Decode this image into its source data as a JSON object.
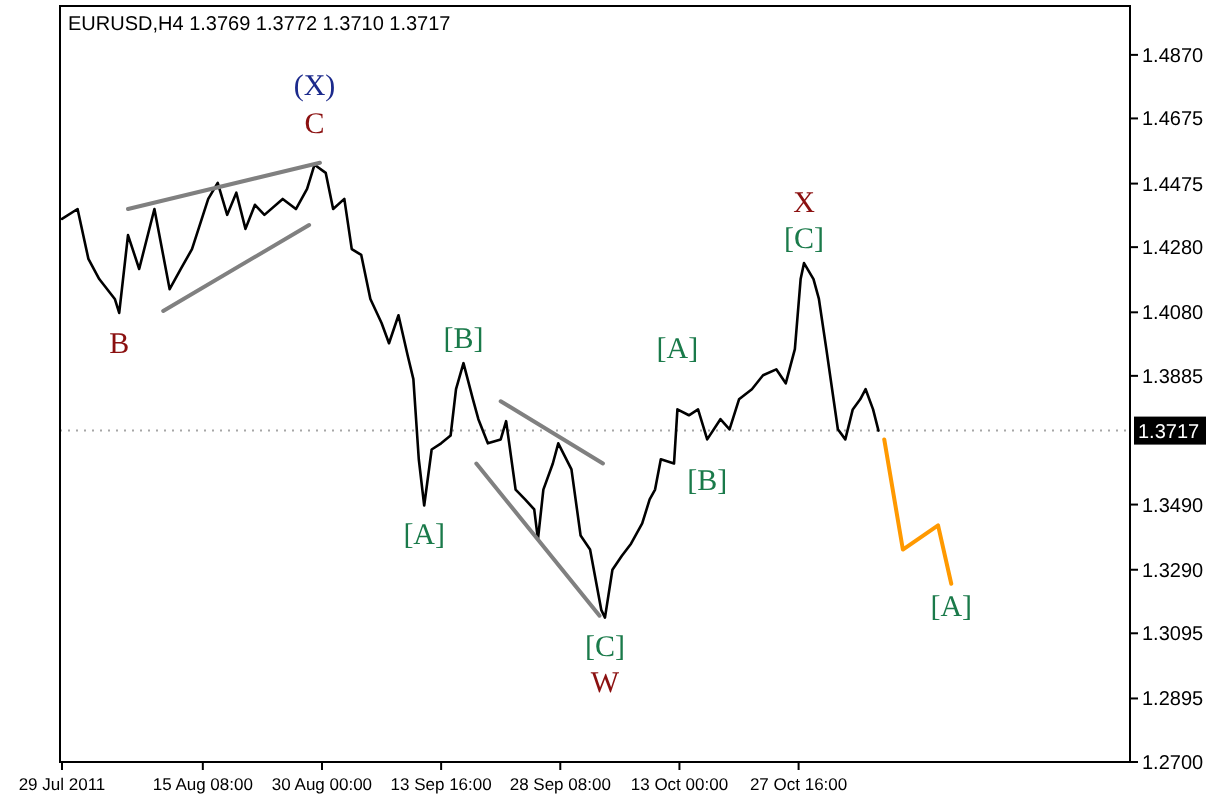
{
  "chart_data": {
    "type": "line",
    "title": "EURUSD,H4  1.3769 1.3772 1.3710 1.3717",
    "grid": false,
    "marker": "none",
    "line_style": "solid",
    "xlim": [
      "2011-07-29T00:00",
      "2011-12-07T11:00"
    ],
    "xticks": [
      {
        "value": "2011-07-29T00:00",
        "label": "29 Jul 2011"
      },
      {
        "value": "2011-08-15T08:00",
        "label": "15 Aug 08:00"
      },
      {
        "value": "2011-08-30T00:00",
        "label": "30 Aug 00:00"
      },
      {
        "value": "2011-09-13T16:00",
        "label": "13 Sep 16:00"
      },
      {
        "value": "2011-09-28T08:00",
        "label": "28 Sep 08:00"
      },
      {
        "value": "2011-10-13T00:00",
        "label": "13 Oct 00:00"
      },
      {
        "value": "2011-10-27T16:00",
        "label": "27 Oct 16:00"
      }
    ],
    "ylim": [
      1.27,
      1.502
    ],
    "yticks": [
      {
        "value": 1.487,
        "label": "1.4870"
      },
      {
        "value": 1.4675,
        "label": "1.4675"
      },
      {
        "value": 1.4475,
        "label": "1.4475"
      },
      {
        "value": 1.428,
        "label": "1.4280"
      },
      {
        "value": 1.408,
        "label": "1.4080"
      },
      {
        "value": 1.3885,
        "label": "1.3885"
      },
      {
        "value": 1.349,
        "label": "1.3490"
      },
      {
        "value": 1.329,
        "label": "1.3290"
      },
      {
        "value": 1.3095,
        "label": "1.3095"
      },
      {
        "value": 1.2895,
        "label": "1.2895"
      },
      {
        "value": 1.27,
        "label": "1.2700"
      }
    ],
    "ref_lines": [
      {
        "axis": "y",
        "value": 1.3717,
        "label": "1.3717",
        "color": "#000000"
      }
    ],
    "series": [
      {
        "color": "#000000",
        "x": [
          "2011-07-29T00:00",
          "2011-07-30T22:00",
          "2011-08-01T06:00",
          "2011-08-02T14:00",
          "2011-08-04T12:00",
          "2011-08-05T01:00",
          "2011-08-06T03:00",
          "2011-08-07T12:00",
          "2011-08-09T09:00",
          "2011-08-11T06:00",
          "2011-08-12T15:00",
          "2011-08-14T00:00",
          "2011-08-16T00:00",
          "2011-08-17T04:00",
          "2011-08-18T08:00",
          "2011-08-19T11:00",
          "2011-08-20T14:00",
          "2011-08-21T18:00",
          "2011-08-22T22:00",
          "2011-08-25T04:00",
          "2011-08-26T19:00",
          "2011-08-28T04:00",
          "2011-08-29T02:00",
          "2011-08-30T11:00",
          "2011-08-31T09:00",
          "2011-09-01T18:00",
          "2011-09-02T16:00",
          "2011-09-03T20:00",
          "2011-09-04T23:00",
          "2011-09-06T08:00",
          "2011-09-07T06:00",
          "2011-09-08T10:00",
          "2011-09-09T13:00",
          "2011-09-10T06:00",
          "2011-09-10T22:00",
          "2011-09-11T14:00",
          "2011-09-12T12:00",
          "2011-09-13T16:00",
          "2011-09-14T20:00",
          "2011-09-15T12:00",
          "2011-09-16T10:00",
          "2011-09-17T14:00",
          "2011-09-18T06:00",
          "2011-09-19T10:00",
          "2011-09-21T00:00",
          "2011-09-21T16:00",
          "2011-09-22T20:00",
          "2011-09-24T00:00",
          "2011-09-25T03:00",
          "2011-09-25T14:00",
          "2011-09-26T06:00",
          "2011-09-27T10:00",
          "2011-09-28T02:00",
          "2011-09-29T17:00",
          "2011-09-30T20:00",
          "2011-10-02T00:00",
          "2011-10-03T09:00",
          "2011-10-03T20:00",
          "2011-10-04T18:00",
          "2011-10-05T22:00",
          "2011-10-07T01:00",
          "2011-10-08T10:00",
          "2011-10-09T08:00",
          "2011-10-10T00:00",
          "2011-10-10T17:00",
          "2011-10-12T08:00",
          "2011-10-12T18:00",
          "2011-10-14T04:00",
          "2011-10-15T07:00",
          "2011-10-16T10:00",
          "2011-10-18T01:00",
          "2011-10-19T04:00",
          "2011-10-20T08:00",
          "2011-10-21T22:00",
          "2011-10-23T07:00",
          "2011-10-24T22:00",
          "2011-10-26T02:00",
          "2011-10-27T05:00",
          "2011-10-27T22:00",
          "2011-10-28T08:00",
          "2011-10-29T12:00",
          "2011-10-30T04:00",
          "2011-10-31T02:00",
          "2011-10-31T19:00",
          "2011-11-01T12:00",
          "2011-11-02T10:00",
          "2011-11-03T08:00",
          "2011-11-04T06:00",
          "2011-11-04T22:00",
          "2011-11-05T20:00",
          "2011-11-06T12:00"
        ],
        "values": [
          1.4367,
          1.4397,
          1.4244,
          1.4182,
          1.4121,
          1.4078,
          1.4317,
          1.4213,
          1.4397,
          1.4151,
          1.4213,
          1.4274,
          1.4428,
          1.4477,
          1.4379,
          1.4447,
          1.4336,
          1.441,
          1.4379,
          1.4428,
          1.4397,
          1.4459,
          1.4533,
          1.4508,
          1.4397,
          1.4428,
          1.4274,
          1.4256,
          1.4121,
          1.4047,
          1.3985,
          1.4071,
          1.3948,
          1.3875,
          1.3629,
          1.3487,
          1.3659,
          1.3678,
          1.3702,
          1.3844,
          1.3924,
          1.3813,
          1.3752,
          1.3678,
          1.369,
          1.3746,
          1.3536,
          1.3506,
          1.3475,
          1.3383,
          1.3536,
          1.3616,
          1.3678,
          1.3598,
          1.3395,
          1.3352,
          1.3167,
          1.3143,
          1.329,
          1.3333,
          1.337,
          1.3432,
          1.3506,
          1.3536,
          1.3629,
          1.3616,
          1.3782,
          1.3764,
          1.3782,
          1.369,
          1.3752,
          1.3721,
          1.3813,
          1.3844,
          1.3887,
          1.3905,
          1.3862,
          1.3967,
          1.4182,
          1.4231,
          1.4182,
          1.4121,
          1.3967,
          1.3844,
          1.3721,
          1.369,
          1.3782,
          1.3813,
          1.3844,
          1.3782,
          1.3717
        ]
      },
      {
        "color": "#ff9900",
        "x": [
          "2011-11-07T05:00",
          "2011-11-09T12:00",
          "2011-11-13T20:00",
          "2011-11-15T11:00"
        ],
        "values": [
          1.369,
          1.3352,
          1.3426,
          1.3247
        ]
      },
      {
        "color": "#808080",
        "x": [
          "2011-08-06T03:00",
          "2011-08-29T18:00"
        ],
        "values": [
          1.4397,
          1.4539
        ]
      },
      {
        "color": "#808080",
        "x": [
          "2011-08-10T11:00",
          "2011-08-28T10:00"
        ],
        "values": [
          1.4084,
          1.4348
        ]
      },
      {
        "color": "#808080",
        "x": [
          "2011-09-21T00:00",
          "2011-10-03T14:00"
        ],
        "values": [
          1.3807,
          1.3616
        ]
      },
      {
        "color": "#808080",
        "x": [
          "2011-09-18T00:00",
          "2011-10-03T04:00"
        ],
        "values": [
          1.3616,
          1.3149
        ]
      }
    ],
    "annotations": [
      {
        "text": "(X)",
        "x": "2011-08-29T02:00",
        "y": 1.4533
      },
      {
        "text": "C",
        "x": "2011-08-29T02:00",
        "y": 1.4533
      },
      {
        "text": "B",
        "x": "2011-08-05T01:00",
        "y": 1.4078
      },
      {
        "text": "[B]",
        "x": "2011-09-16T10:00",
        "y": 1.3924
      },
      {
        "text": "[A]",
        "x": "2011-09-11T14:00",
        "y": 1.3487
      },
      {
        "text": "[C]",
        "x": "2011-10-03T20:00",
        "y": 1.3143
      },
      {
        "text": "W",
        "x": "2011-10-03T20:00",
        "y": 1.3143
      },
      {
        "text": "[A]",
        "x": "2011-10-12T18:00",
        "y": 1.3782
      },
      {
        "text": "[B]",
        "x": "2011-10-16T10:00",
        "y": 1.369
      },
      {
        "text": "X",
        "x": "2011-10-28T08:00",
        "y": 1.4231
      },
      {
        "text": "[C]",
        "x": "2011-10-28T08:00",
        "y": 1.4231
      },
      {
        "text": "[A]",
        "x": "2011-11-15T11:00",
        "y": 1.3247
      }
    ]
  }
}
